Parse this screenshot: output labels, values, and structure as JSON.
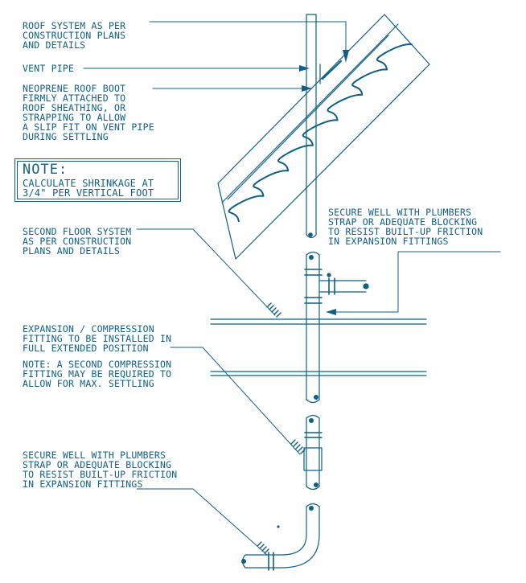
{
  "labels": {
    "roof_system": "ROOF SYSTEM AS PER\nCONSTRUCTION PLANS\nAND DETAILS",
    "vent_pipe": "VENT PIPE",
    "roof_boot": "NEOPRENE ROOF BOOT\nFIRMLY ATTACHED TO\nROOF SHEATHING, OR\nSTRAPPING TO ALLOW\nA SLIP FIT ON VENT PIPE\nDURING SETTLING",
    "note_title": "NOTE:",
    "note_text": "CALCULATE SHRINKAGE AT\n3/4\" PER VERTICAL FOOT",
    "secure_upper": "SECURE WELL WITH PLUMBERS\nSTRAP OR ADEQUATE BLOCKING\nTO RESIST BUILT-UP FRICTION\nIN EXPANSION FITTINGS",
    "second_floor": "SECOND FLOOR SYSTEM\nAS PER CONSTRUCTION\nPLANS AND DETAILS",
    "expansion_fitting": "EXPANSION / COMPRESSION\nFITTING TO BE INSTALLED IN\nFULL EXTENDED POSITION",
    "note_second": "NOTE: A SECOND COMPRESSION\nFITTING MAY BE REQUIRED TO\nALLOW FOR MAX. SETTLING",
    "secure_lower": "SECURE WELL WITH PLUMBERS\nSTRAP OR ADEQUATE BLOCKING\nTO RESIST BUILT-UP FRICTION\nIN EXPANSION FITTINGS"
  },
  "colors": {
    "line": "#0f5f86",
    "background": "#ffffff"
  }
}
